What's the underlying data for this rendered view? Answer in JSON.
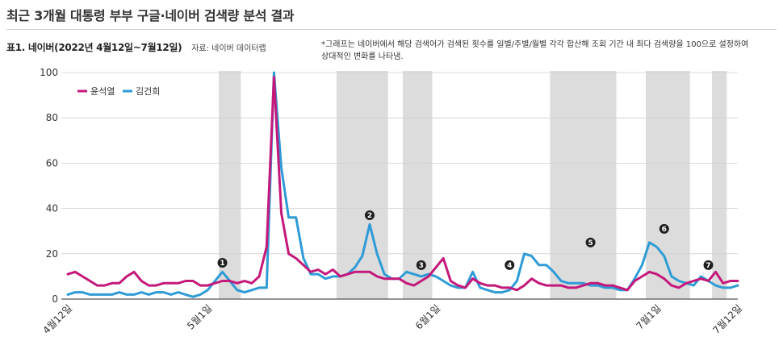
{
  "page": {
    "title": "최근 3개월 대통령 부부 구글·네이버 검색량 분석 결과",
    "table_title": "표1. 네이버(2022년 4월12일~7월12일)",
    "source": "자료: 네이버 데이터랩",
    "note": "*그래프는 네이버에서 해당 검색어가 검색된 횟수를 일별/주별/월별 각각 합산해 조회 기간 내 최다 검색량을 100으로 설정하여 상대적인 변화를 나타냄."
  },
  "colors": {
    "series_1": "#c4187a",
    "series_2": "#2f9bd6",
    "band": "#dcdcdc",
    "marker": "#1f1f1f"
  },
  "chart_data": {
    "type": "line",
    "x_tick_labels": [
      "4월12일",
      "5월1일",
      "6월1일",
      "7월1일",
      "7월12일"
    ],
    "x_tick_index": [
      0,
      19,
      50,
      80,
      91
    ],
    "ylim": [
      0,
      100
    ],
    "y_ticks": [
      0,
      20,
      40,
      60,
      80,
      100
    ],
    "grid": true,
    "legend_position": "top-left",
    "series": [
      {
        "name": "윤석열",
        "color": "#c4187a",
        "values": [
          11,
          12,
          10,
          8,
          6,
          6,
          7,
          7,
          10,
          12,
          8,
          6,
          6,
          7,
          7,
          7,
          8,
          8,
          6,
          6,
          7,
          8,
          8,
          7,
          8,
          7,
          10,
          23,
          98,
          38,
          20,
          18,
          15,
          12,
          13,
          11,
          13,
          10,
          11,
          12,
          12,
          12,
          10,
          9,
          9,
          9,
          7,
          6,
          8,
          10,
          14,
          18,
          8,
          6,
          5,
          9,
          7,
          6,
          6,
          5,
          5,
          4,
          6,
          9,
          7,
          6,
          6,
          6,
          5,
          5,
          6,
          7,
          7,
          6,
          6,
          5,
          4,
          8,
          10,
          12,
          11,
          9,
          6,
          5,
          7,
          8,
          9,
          8,
          12,
          7,
          8,
          8
        ]
      },
      {
        "name": "김건희",
        "color": "#2f9bd6",
        "values": [
          2,
          3,
          3,
          2,
          2,
          2,
          2,
          3,
          2,
          2,
          3,
          2,
          3,
          3,
          2,
          3,
          2,
          1,
          2,
          4,
          8,
          12,
          8,
          4,
          3,
          4,
          5,
          5,
          100,
          58,
          36,
          36,
          18,
          11,
          11,
          9,
          10,
          10,
          11,
          14,
          19,
          33,
          20,
          11,
          9,
          9,
          12,
          11,
          10,
          11,
          10,
          8,
          6,
          5,
          5,
          12,
          5,
          4,
          3,
          3,
          4,
          8,
          20,
          19,
          15,
          15,
          12,
          8,
          7,
          7,
          7,
          6,
          6,
          5,
          5,
          4,
          4,
          9,
          15,
          25,
          23,
          19,
          10,
          8,
          7,
          6,
          10,
          8,
          6,
          5,
          5,
          6
        ]
      }
    ],
    "shaded_ranges": [
      [
        21,
        23
      ],
      [
        37,
        43
      ],
      [
        46,
        49
      ],
      [
        66,
        74
      ],
      [
        79,
        84
      ],
      [
        88,
        89
      ]
    ],
    "annotations": [
      {
        "label": "1",
        "x": 21,
        "y": 16
      },
      {
        "label": "2",
        "x": 41,
        "y": 37
      },
      {
        "label": "3",
        "x": 48,
        "y": 15
      },
      {
        "label": "4",
        "x": 60,
        "y": 15
      },
      {
        "label": "5",
        "x": 71,
        "y": 25
      },
      {
        "label": "6",
        "x": 81,
        "y": 31
      },
      {
        "label": "7",
        "x": 87,
        "y": 15
      }
    ]
  }
}
